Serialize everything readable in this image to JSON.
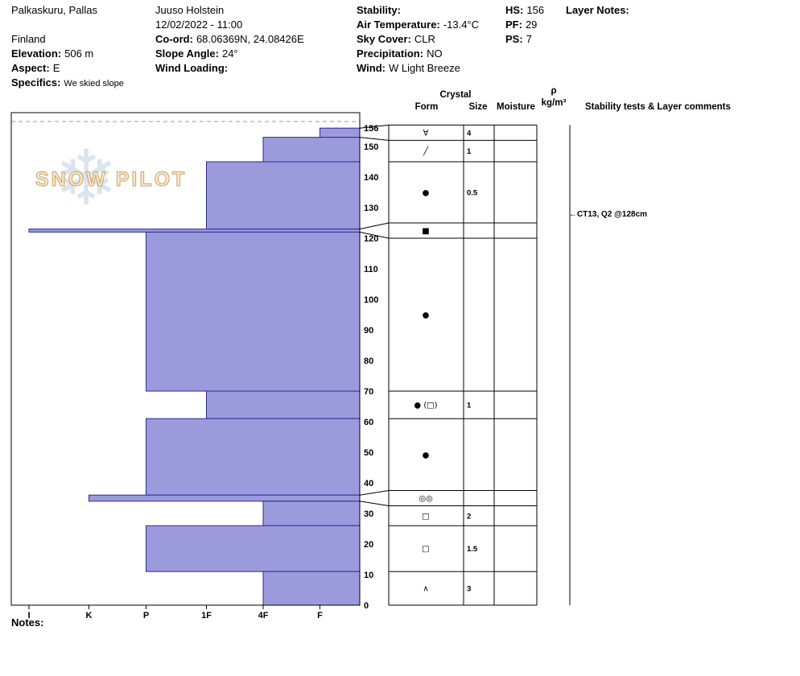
{
  "icons": {
    "arrow_left": "←",
    "snowflake": "❄"
  },
  "header": {
    "location": "Palkaskuru, Pallas",
    "country": "Finland",
    "elevation_label": "Elevation:",
    "elevation_value": "506 m",
    "aspect_label": "Aspect:",
    "aspect_value": "E",
    "specifics_label": "Specifics:",
    "specifics_value": "We skied slope",
    "observer": "Juuso Holstein",
    "datetime": "12/02/2022 - 11:00",
    "coord_label": "Co-ord:",
    "coord_value": "68.06369N, 24.08426E",
    "slope_angle_label": "Slope Angle:",
    "slope_angle_value": "24°",
    "wind_loading_label": "Wind Loading:",
    "wind_loading_value": "",
    "stability_label": "Stability:",
    "stability_value": "",
    "air_temp_label": "Air Temperature:",
    "air_temp_value": "-13.4°C",
    "sky_cover_label": "Sky Cover:",
    "sky_cover_value": "CLR",
    "precip_label": "Precipitation:",
    "precip_value": "NO",
    "wind_label": "Wind:",
    "wind_value": "W Light Breeze",
    "hs_label": "HS:",
    "hs_value": "156",
    "pf_label": "PF:",
    "pf_value": "29",
    "ps_label": "PS:",
    "ps_value": "7",
    "layer_notes_label": "Layer Notes:"
  },
  "watermark": {
    "text": "SNOW PILOT"
  },
  "chart_data": {
    "type": "bar",
    "description": "Snow pit hardness profile: horizontal bars anchored at the right edge; bar length = hand hardness (F soft to I ice). Vertical axis = height above ground in cm (0 bottom, 156 snow surface).",
    "total_depth_cm": 156,
    "depth_axis_cm": [
      0,
      10,
      20,
      30,
      40,
      50,
      60,
      70,
      80,
      90,
      100,
      110,
      120,
      130,
      140,
      150,
      156
    ],
    "hardness_axis": [
      "I",
      "K",
      "P",
      "1F",
      "4F",
      "F"
    ],
    "layers": [
      {
        "top_cm": 156,
        "bottom_cm": 153,
        "hardness": "F",
        "grain_form": "∀",
        "grain_size": "4"
      },
      {
        "top_cm": 153,
        "bottom_cm": 145,
        "hardness": "4F",
        "grain_form": "╱",
        "grain_size": "1"
      },
      {
        "top_cm": 145,
        "bottom_cm": 123,
        "hardness": "1F",
        "grain_form": "●",
        "grain_size": "0.5"
      },
      {
        "top_cm": 123,
        "bottom_cm": 122,
        "hardness": "I",
        "grain_form": "■",
        "grain_size": ""
      },
      {
        "top_cm": 122,
        "bottom_cm": 70,
        "hardness": "P",
        "grain_form": "●",
        "grain_size": ""
      },
      {
        "top_cm": 70,
        "bottom_cm": 61,
        "hardness": "1F",
        "grain_form": "● (□)",
        "grain_size": "1"
      },
      {
        "top_cm": 61,
        "bottom_cm": 36,
        "hardness": "P",
        "grain_form": "●",
        "grain_size": ""
      },
      {
        "top_cm": 36,
        "bottom_cm": 34,
        "hardness": "K",
        "grain_form": "◎◎",
        "grain_size": ""
      },
      {
        "top_cm": 34,
        "bottom_cm": 26,
        "hardness": "4F",
        "grain_form": "□",
        "grain_size": "2"
      },
      {
        "top_cm": 26,
        "bottom_cm": 11,
        "hardness": "P",
        "grain_form": "□",
        "grain_size": "1.5"
      },
      {
        "top_cm": 11,
        "bottom_cm": 0,
        "hardness": "4F",
        "grain_form": "∧",
        "grain_size": "3"
      }
    ],
    "annotation": {
      "text": "CT13, Q2 @128cm",
      "height_cm": 128
    },
    "table_headers": {
      "crystal": "Crystal",
      "form": "Form",
      "size": "Size",
      "moisture": "Moisture",
      "density_symbol": "ρ",
      "density_unit": "kg/m³",
      "comments": "Stability tests & Layer comments"
    },
    "colors": {
      "bar_fill": "#9b9bdc",
      "bar_stroke": "#2a2a9a"
    }
  },
  "notes_label": "Notes:"
}
